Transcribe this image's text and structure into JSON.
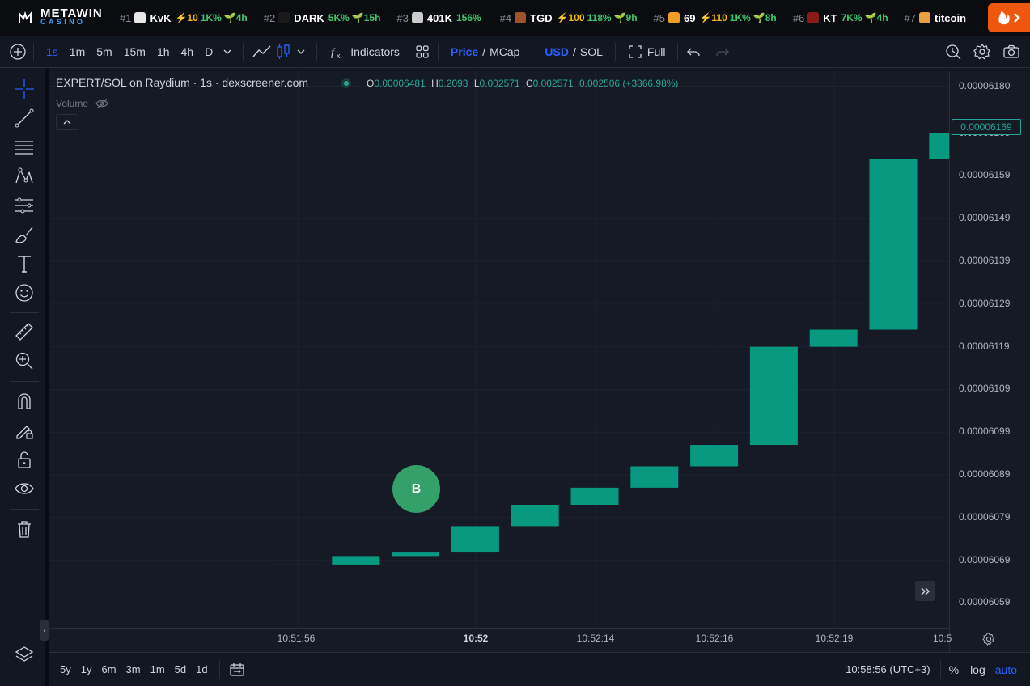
{
  "brand": {
    "name": "METAWIN",
    "sub": "CASINO"
  },
  "tickers": [
    {
      "rank": "#1",
      "symbol": "KvK",
      "boost": "⚡10",
      "change": "1K%",
      "age": "🌱4h",
      "icon_color": "#e8e8e8"
    },
    {
      "rank": "#2",
      "symbol": "DARK",
      "boost": "",
      "change": "5K%",
      "age": "🌱15h",
      "icon_color": "#1a1a1a"
    },
    {
      "rank": "#3",
      "symbol": "401K",
      "boost": "",
      "change": "156%",
      "age": "",
      "icon_color": "#cccccc"
    },
    {
      "rank": "#4",
      "symbol": "TGD",
      "boost": "⚡100",
      "change": "118%",
      "age": "🌱9h",
      "icon_color": "#a0522d"
    },
    {
      "rank": "#5",
      "symbol": "69",
      "boost": "⚡110",
      "change": "1K%",
      "age": "🌱8h",
      "icon_color": "#f0a020"
    },
    {
      "rank": "#6",
      "symbol": "KT",
      "boost": "",
      "change": "7K%",
      "age": "🌱4h",
      "icon_color": "#8b1a1a"
    },
    {
      "rank": "#7",
      "symbol": "titcoin",
      "boost": "",
      "change": "",
      "age": "",
      "icon_color": "#e8a040"
    }
  ],
  "toolbar": {
    "intervals": [
      "1s",
      "1m",
      "5m",
      "15m",
      "1h",
      "4h",
      "D"
    ],
    "active_interval": "1s",
    "indicators": "Indicators",
    "price": "Price",
    "mcap": "MCap",
    "usd": "USD",
    "sol": "SOL",
    "full": "Full"
  },
  "legend": {
    "title": "EXPERT/SOL on Raydium · 1s · dexscreener.com",
    "o_label": "O",
    "o": "0.00006481",
    "h_label": "H",
    "h": "0.2093",
    "l_label": "L",
    "l": "0.002571",
    "c_label": "C",
    "c": "0.002571",
    "chg": "0.002506 (+3866.98%)",
    "volume": "Volume"
  },
  "chart_data": {
    "type": "candlestick",
    "title": "EXPERT/SOL on Raydium · 1s · dexscreener.com",
    "ylim": [
      6.057e-05,
      6.182e-05
    ],
    "price_ticks": [
      "0.00006180",
      "0.00006169",
      "0.00006159",
      "0.00006149",
      "0.00006139",
      "0.00006129",
      "0.00006119",
      "0.00006109",
      "0.00006099",
      "0.00006089",
      "0.00006079",
      "0.00006069",
      "0.00006059"
    ],
    "current_price": "0.00006169",
    "time_ticks": [
      {
        "label": "10:51:56",
        "bold": false
      },
      {
        "label": "10:52",
        "bold": true
      },
      {
        "label": "10:52:14",
        "bold": false
      },
      {
        "label": "10:52:16",
        "bold": false
      },
      {
        "label": "10:52:19",
        "bold": false
      },
      {
        "label": "10:5",
        "bold": false
      }
    ],
    "candles": [
      {
        "open": 6.068e-05,
        "close": 6.068e-05
      },
      {
        "open": 6.068e-05,
        "close": 6.07e-05
      },
      {
        "open": 6.07e-05,
        "close": 6.071e-05
      },
      {
        "open": 6.071e-05,
        "close": 6.077e-05
      },
      {
        "open": 6.077e-05,
        "close": 6.082e-05
      },
      {
        "open": 6.082e-05,
        "close": 6.086e-05
      },
      {
        "open": 6.086e-05,
        "close": 6.091e-05
      },
      {
        "open": 6.091e-05,
        "close": 6.096e-05
      },
      {
        "open": 6.096e-05,
        "close": 6.119e-05
      },
      {
        "open": 6.119e-05,
        "close": 6.123e-05
      },
      {
        "open": 6.123e-05,
        "close": 6.163e-05
      },
      {
        "open": 6.163e-05,
        "close": 6.169e-05
      }
    ],
    "marker": "B",
    "up_color": "#089981"
  },
  "bottom": {
    "ranges": [
      "5y",
      "1y",
      "6m",
      "3m",
      "1m",
      "5d",
      "1d"
    ],
    "clock": "10:58:56 (UTC+3)",
    "pct": "%",
    "log": "log",
    "auto": "auto"
  }
}
